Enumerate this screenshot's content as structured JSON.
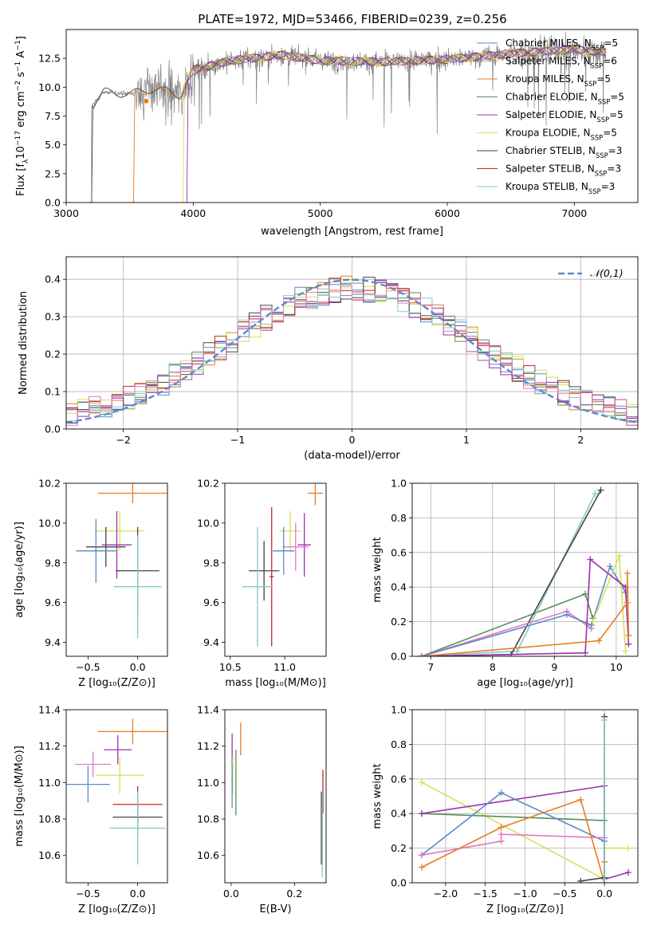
{
  "figure_title": "PLATE=1972, MJD=53466, FIBERID=0239, z=0.256",
  "colors": {
    "Chabrier MILES": "#5a8acc",
    "Salpeter MILES": "#a0a0a0",
    "Kroupa MILES": "#e67e22",
    "Chabrier ELODIE": "#5b8c5a",
    "Salpeter ELODIE": "#9b30b0",
    "Kroupa ELODIE": "#d4e157",
    "Chabrier STELIB": "#444444",
    "Salpeter STELIB": "#c62828",
    "Kroupa STELIB": "#80cbc4",
    "Pink": "#e377c2",
    "Normal": "#5b8bd0",
    "Spectrum": "#808080"
  },
  "chart_data": [
    {
      "id": "spectrum",
      "type": "line",
      "title": "PLATE=1972, MJD=53466, FIBERID=0239, z=0.256",
      "xlabel": "wavelength [Angstrom, rest frame]",
      "ylabel": "Flux [fλ10⁻¹⁷ erg cm⁻² s⁻¹ A⁻¹]",
      "xlim": [
        3000,
        7500
      ],
      "ylim": [
        0,
        15
      ],
      "xticks": [
        "3000",
        "4000",
        "5000",
        "6000",
        "7000"
      ],
      "yticks": [
        "0.0",
        "2.5",
        "5.0",
        "7.5",
        "10.0",
        "12.5"
      ],
      "legend_position": "top-right",
      "legend": [
        {
          "label": "Chabrier MILES, N",
          "sub": "SSP",
          "tail": "=5",
          "color": "Chabrier MILES"
        },
        {
          "label": "Salpeter MILES, N",
          "sub": "SSP",
          "tail": "=6",
          "color": "Salpeter MILES"
        },
        {
          "label": "Kroupa MILES, N",
          "sub": "SSP",
          "tail": "=5",
          "color": "Kroupa MILES"
        },
        {
          "label": "Chabrier ELODIE, N",
          "sub": "SSP",
          "tail": "=5",
          "color": "Chabrier ELODIE"
        },
        {
          "label": "Salpeter ELODIE, N",
          "sub": "SSP",
          "tail": "=5",
          "color": "Salpeter ELODIE"
        },
        {
          "label": "Kroupa ELODIE, N",
          "sub": "SSP",
          "tail": "=5",
          "color": "Kroupa ELODIE"
        },
        {
          "label": "Chabrier STELIB, N",
          "sub": "SSP",
          "tail": "=3",
          "color": "Chabrier STELIB"
        },
        {
          "label": "Salpeter STELIB, N",
          "sub": "SSP",
          "tail": "=3",
          "color": "Salpeter STELIB"
        },
        {
          "label": "Kroupa STELIB, N",
          "sub": "SSP",
          "tail": "=3",
          "color": "Kroupa STELIB"
        }
      ],
      "continuum": [
        [
          3200,
          8.3
        ],
        [
          3300,
          9.6
        ],
        [
          3500,
          9.4
        ],
        [
          3700,
          9.9
        ],
        [
          3900,
          9.3
        ],
        [
          4000,
          11.5
        ],
        [
          4300,
          12.3
        ],
        [
          4700,
          12.8
        ],
        [
          5000,
          12.3
        ],
        [
          5500,
          12.2
        ],
        [
          6000,
          12.4
        ],
        [
          6500,
          12.9
        ],
        [
          7000,
          13.3
        ],
        [
          7250,
          13.0
        ]
      ],
      "model_starts": [
        {
          "x0": 3200,
          "color": "Chabrier STELIB"
        },
        {
          "x0": 3530,
          "color": "Kroupa MILES"
        },
        {
          "x0": 3920,
          "color": "Kroupa ELODIE"
        },
        {
          "x0": 3950,
          "color": "Salpeter ELODIE"
        }
      ]
    },
    {
      "id": "residuals",
      "type": "step",
      "xlabel": "(data-model)/error",
      "ylabel": "Normed distribution",
      "xlim": [
        -2.5,
        2.5
      ],
      "ylim": [
        0,
        0.46
      ],
      "xticks": [
        "−2",
        "−1",
        "0",
        "1",
        "2"
      ],
      "yticks": [
        "0.0",
        "0.1",
        "0.2",
        "0.3",
        "0.4"
      ],
      "grid": true,
      "legend_position": "top-right",
      "legend": "𝒩(0,1)",
      "bin_width": 0.1,
      "histogram_colors": [
        "Chabrier MILES",
        "Kroupa MILES",
        "Chabrier ELODIE",
        "Salpeter ELODIE",
        "Kroupa ELODIE",
        "Chabrier STELIB",
        "Salpeter STELIB",
        "Kroupa STELIB",
        "Pink"
      ]
    },
    {
      "id": "age_vs_Z",
      "type": "scatter",
      "xlabel": "Z [log₁₀(Z/Z⊙)]",
      "ylabel": "age  [log₁₀(age/yr)]",
      "xlim": [
        -0.72,
        0.3
      ],
      "ylim": [
        9.33,
        10.2
      ],
      "xticks": [
        "−0.5",
        "0.0"
      ],
      "yticks": [
        "9.4",
        "9.6",
        "9.8",
        "10.0",
        "10.2"
      ],
      "points": [
        {
          "x": -0.05,
          "y": 10.15,
          "ex": 0.35,
          "ey": 0.05,
          "color": "Kroupa MILES"
        },
        {
          "x": -0.18,
          "y": 9.96,
          "ex": 0.25,
          "ey": 0.1,
          "color": "Kroupa ELODIE"
        },
        {
          "x": -0.21,
          "y": 9.89,
          "ex": 0.15,
          "ey": 0.17,
          "color": "Salpeter ELODIE"
        },
        {
          "x": -0.32,
          "y": 9.88,
          "ex": 0.2,
          "ey": 0.1,
          "color": "Chabrier STELIB"
        },
        {
          "x": -0.42,
          "y": 9.86,
          "ex": 0.2,
          "ey": 0.16,
          "color": "Chabrier MILES"
        },
        {
          "x": 0.0,
          "y": 9.76,
          "ex": 0.22,
          "ey": 0.22,
          "color": "Chabrier STELIB"
        },
        {
          "x": 0.0,
          "y": 9.68,
          "ex": 0.24,
          "ey": 0.26,
          "color": "Kroupa STELIB"
        }
      ]
    },
    {
      "id": "age_vs_mass",
      "type": "scatter",
      "xlabel": "mass [log₁₀(M/M⊙)]",
      "ylabel": "",
      "xlim": [
        10.45,
        11.38
      ],
      "ylim": [
        9.33,
        10.2
      ],
      "xticks": [
        "10.5",
        "11.0"
      ],
      "yticks": [
        "9.4",
        "9.6",
        "9.8",
        "10.0",
        "10.2"
      ],
      "points": [
        {
          "x": 11.28,
          "y": 10.15,
          "ex": 0.07,
          "ey": 0.06,
          "color": "Kroupa MILES"
        },
        {
          "x": 11.05,
          "y": 9.96,
          "ex": 0.1,
          "ey": 0.1,
          "color": "Kroupa ELODIE"
        },
        {
          "x": 11.18,
          "y": 9.89,
          "ex": 0.06,
          "ey": 0.16,
          "color": "Salpeter ELODIE"
        },
        {
          "x": 11.1,
          "y": 9.88,
          "ex": 0.12,
          "ey": 0.12,
          "color": "Pink"
        },
        {
          "x": 10.99,
          "y": 9.86,
          "ex": 0.1,
          "ey": 0.12,
          "color": "Chabrier MILES"
        },
        {
          "x": 10.81,
          "y": 9.76,
          "ex": 0.14,
          "ey": 0.15,
          "color": "Chabrier STELIB"
        },
        {
          "x": 10.88,
          "y": 9.73,
          "ex": 0.02,
          "ey": 0.35,
          "color": "Salpeter STELIB"
        },
        {
          "x": 10.75,
          "y": 9.68,
          "ex": 0.14,
          "ey": 0.3,
          "color": "Kroupa STELIB"
        }
      ]
    },
    {
      "id": "mass_weight_vs_age",
      "type": "line",
      "xlabel": "age  [log₁₀(age/yr)]",
      "ylabel": "mass weight",
      "xlim": [
        6.7,
        10.35
      ],
      "ylim": [
        0,
        1
      ],
      "xticks": [
        "7",
        "8",
        "9",
        "10"
      ],
      "yticks": [
        "0.0",
        "0.2",
        "0.4",
        "0.6",
        "0.8",
        "1.0"
      ],
      "grid": true,
      "series": [
        {
          "color": "Chabrier ELODIE",
          "points": [
            [
              6.85,
              0.0
            ],
            [
              9.5,
              0.36
            ],
            [
              9.62,
              0.22
            ]
          ]
        },
        {
          "color": "Kroupa STELIB",
          "points": [
            [
              6.85,
              0.0
            ],
            [
              8.4,
              0.03
            ],
            [
              9.66,
              0.94
            ]
          ]
        },
        {
          "color": "Chabrier STELIB",
          "points": [
            [
              6.85,
              0.0
            ],
            [
              8.3,
              0.01
            ],
            [
              9.75,
              0.96
            ]
          ]
        },
        {
          "color": "Pink",
          "points": [
            [
              6.85,
              0.0
            ],
            [
              9.2,
              0.26
            ],
            [
              9.6,
              0.16
            ]
          ]
        },
        {
          "color": "Chabrier MILES",
          "points": [
            [
              6.85,
              0.0
            ],
            [
              9.2,
              0.24
            ],
            [
              9.6,
              0.18
            ],
            [
              9.9,
              0.52
            ],
            [
              10.15,
              0.37
            ]
          ]
        },
        {
          "color": "Kroupa ELODIE",
          "points": [
            [
              9.62,
              0.2
            ],
            [
              10.05,
              0.58
            ],
            [
              10.15,
              0.03
            ]
          ]
        },
        {
          "color": "Salpeter ELODIE",
          "points": [
            [
              6.85,
              0.0
            ],
            [
              9.5,
              0.02
            ],
            [
              9.58,
              0.56
            ],
            [
              10.15,
              0.4
            ],
            [
              10.2,
              0.07
            ]
          ]
        },
        {
          "color": "Kroupa MILES",
          "points": [
            [
              6.85,
              0.0
            ],
            [
              9.72,
              0.09
            ],
            [
              10.18,
              0.31
            ],
            [
              10.18,
              0.48
            ],
            [
              10.2,
              0.12
            ]
          ]
        }
      ]
    },
    {
      "id": "mass_vs_Z",
      "type": "scatter",
      "xlabel": "Z [log₁₀(Z/Z⊙)]",
      "ylabel": "mass [log₁₀(M/M⊙)]",
      "xlim": [
        -0.72,
        0.3
      ],
      "ylim": [
        10.45,
        11.4
      ],
      "xticks": [
        "−0.5",
        "0.0"
      ],
      "yticks": [
        "10.6",
        "10.8",
        "11.0",
        "11.2",
        "11.4"
      ],
      "points": [
        {
          "x": -0.05,
          "y": 11.28,
          "ex": 0.35,
          "ey": 0.07,
          "color": "Kroupa MILES"
        },
        {
          "x": -0.2,
          "y": 11.18,
          "ex": 0.14,
          "ey": 0.08,
          "color": "Salpeter ELODIE"
        },
        {
          "x": -0.45,
          "y": 11.1,
          "ex": 0.18,
          "ey": 0.07,
          "color": "Pink"
        },
        {
          "x": -0.18,
          "y": 11.04,
          "ex": 0.24,
          "ey": 0.1,
          "color": "Kroupa ELODIE"
        },
        {
          "x": -0.5,
          "y": 10.99,
          "ex": 0.22,
          "ey": 0.1,
          "color": "Chabrier MILES"
        },
        {
          "x": 0.0,
          "y": 10.88,
          "ex": 0.25,
          "ey": 0.1,
          "color": "Salpeter STELIB"
        },
        {
          "x": 0.0,
          "y": 10.81,
          "ex": 0.25,
          "ey": 0.1,
          "color": "Chabrier STELIB"
        },
        {
          "x": 0.0,
          "y": 10.75,
          "ex": 0.28,
          "ey": 0.2,
          "color": "Kroupa STELIB"
        }
      ]
    },
    {
      "id": "mass_vs_EBV",
      "type": "scatter",
      "xlabel": "E(B-V)",
      "ylabel": "",
      "xlim": [
        -0.02,
        0.3
      ],
      "ylim": [
        10.45,
        11.4
      ],
      "xticks": [
        "0.0",
        "0.2"
      ],
      "yticks": [
        "10.6",
        "10.8",
        "11.0",
        "11.2",
        "11.4"
      ],
      "points": [
        {
          "x": 0.03,
          "y": 11.24,
          "ex": 0.0,
          "ey": 0.09,
          "color": "Kroupa MILES"
        },
        {
          "x": 0.003,
          "y": 11.18,
          "ex": 0.0,
          "ey": 0.09,
          "color": "Salpeter ELODIE"
        },
        {
          "x": 0.005,
          "y": 11.04,
          "ex": 0.0,
          "ey": 0.1,
          "color": "Kroupa ELODIE"
        },
        {
          "x": 0.003,
          "y": 10.98,
          "ex": 0.0,
          "ey": 0.12,
          "color": "Chabrier MILES"
        },
        {
          "x": 0.015,
          "y": 11.0,
          "ex": 0.0,
          "ey": 0.18,
          "color": "Chabrier ELODIE"
        },
        {
          "x": 0.29,
          "y": 10.95,
          "ex": 0.0,
          "ey": 0.12,
          "color": "Salpeter STELIB"
        },
        {
          "x": 0.285,
          "y": 10.75,
          "ex": 0.0,
          "ey": 0.2,
          "color": "Chabrier STELIB"
        },
        {
          "x": 0.288,
          "y": 10.72,
          "ex": 0.0,
          "ey": 0.24,
          "color": "Kroupa STELIB"
        }
      ]
    },
    {
      "id": "mass_weight_vs_Z",
      "type": "line",
      "xlabel": "Z [log₁₀(Z/Z⊙)]",
      "ylabel": "mass weight",
      "xlim": [
        -2.42,
        0.42
      ],
      "ylim": [
        0,
        1
      ],
      "xticks": [
        "−2.0",
        "−1.5",
        "−1.0",
        "−0.5",
        "0.0"
      ],
      "yticks": [
        "0.0",
        "0.2",
        "0.4",
        "0.6",
        "0.8",
        "1.0"
      ],
      "grid": true,
      "series": [
        {
          "color": "Kroupa ELODIE",
          "points": [
            [
              -2.3,
              0.58
            ],
            [
              0.0,
              0.02
            ],
            [
              0.0,
              0.2
            ],
            [
              0.3,
              0.2
            ]
          ]
        },
        {
          "color": "Chabrier ELODIE",
          "points": [
            [
              -2.3,
              0.4
            ],
            [
              0.0,
              0.36
            ]
          ]
        },
        {
          "color": "Salpeter ELODIE",
          "points": [
            [
              -2.3,
              0.4
            ],
            [
              0.0,
              0.56
            ],
            [
              0.0,
              0.02
            ],
            [
              0.3,
              0.06
            ]
          ]
        },
        {
          "color": "Chabrier MILES",
          "points": [
            [
              -2.3,
              0.16
            ],
            [
              -1.3,
              0.52
            ],
            [
              0.0,
              0.24
            ]
          ]
        },
        {
          "color": "Pink",
          "points": [
            [
              -2.3,
              0.16
            ],
            [
              -1.3,
              0.24
            ],
            [
              -1.3,
              0.28
            ],
            [
              0.0,
              0.26
            ]
          ]
        },
        {
          "color": "Kroupa MILES",
          "points": [
            [
              -2.3,
              0.09
            ],
            [
              -1.3,
              0.32
            ],
            [
              -0.3,
              0.48
            ],
            [
              0.0,
              0.0
            ],
            [
              0.0,
              0.12
            ]
          ]
        },
        {
          "color": "Chabrier STELIB",
          "points": [
            [
              -0.3,
              0.01
            ],
            [
              0.0,
              0.03
            ],
            [
              0.0,
              0.96
            ]
          ]
        },
        {
          "color": "Kroupa STELIB",
          "points": [
            [
              0.0,
              0.02
            ],
            [
              0.0,
              0.94
            ]
          ]
        }
      ]
    }
  ]
}
